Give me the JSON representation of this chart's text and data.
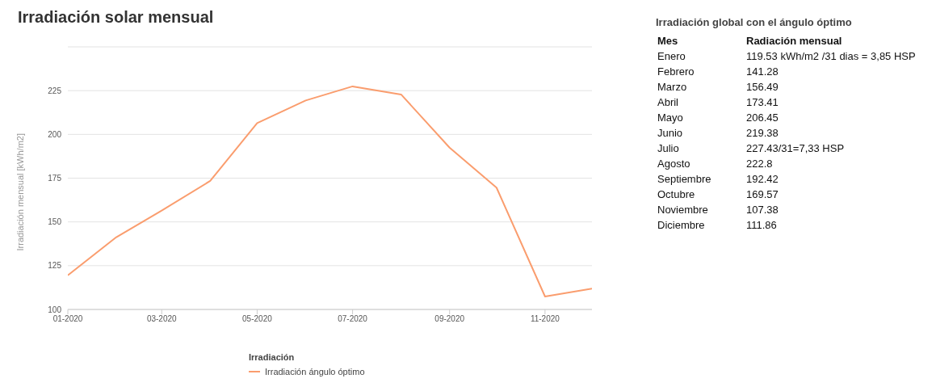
{
  "chart_data": [
    {
      "type": "line",
      "title": "Irradiación solar mensual",
      "ylabel": "Irradiación mensual [kWh/m2]",
      "legend_title": "Irradiación",
      "x": [
        "2020-01",
        "2020-02",
        "2020-03",
        "2020-04",
        "2020-05",
        "2020-06",
        "2020-07",
        "2020-08",
        "2020-09",
        "2020-10",
        "2020-11",
        "2020-12"
      ],
      "series": [
        {
          "name": "Irradiación ángulo óptimo",
          "color": "#fa9d6e",
          "values": [
            119.53,
            141.28,
            156.49,
            173.41,
            206.45,
            219.38,
            227.43,
            222.8,
            192.42,
            169.57,
            107.38,
            111.86
          ]
        }
      ],
      "xlim": [
        "2020-01",
        "2020-12"
      ],
      "xticks": [
        {
          "value": "2020-01",
          "label": "01-2020"
        },
        {
          "value": "2020-03",
          "label": "03-2020"
        },
        {
          "value": "2020-05",
          "label": "05-2020"
        },
        {
          "value": "2020-07",
          "label": "07-2020"
        },
        {
          "value": "2020-09",
          "label": "09-2020"
        },
        {
          "value": "2020-11",
          "label": "11-2020"
        }
      ],
      "ylim": [
        100,
        250
      ],
      "yticks": [
        100,
        125,
        150,
        175,
        200,
        225
      ],
      "grid": "y",
      "legend": "bottom",
      "marker": "none",
      "line_style": "solid"
    },
    {
      "type": "other",
      "title": "Irradiación global con el ángulo óptimo",
      "annotations": [
        "Mes",
        "Radiación mensual"
      ],
      "categories": [
        "Enero",
        "Febrero",
        "Marzo",
        "Abril",
        "Mayo",
        "Junio",
        "Julio",
        "Agosto",
        "Septiembre",
        "Octubre",
        "Noviembre",
        "Diciembre"
      ],
      "value_labels": [
        "119.53 kWh/m2 /31 dias = 3,85 HSP",
        "141.28",
        "156.49",
        "173.41",
        "206.45",
        "219.38",
        "227.43/31=7,33 HSP",
        "222.8",
        "192.42",
        "169.57",
        "107.38",
        "111.86"
      ]
    }
  ]
}
